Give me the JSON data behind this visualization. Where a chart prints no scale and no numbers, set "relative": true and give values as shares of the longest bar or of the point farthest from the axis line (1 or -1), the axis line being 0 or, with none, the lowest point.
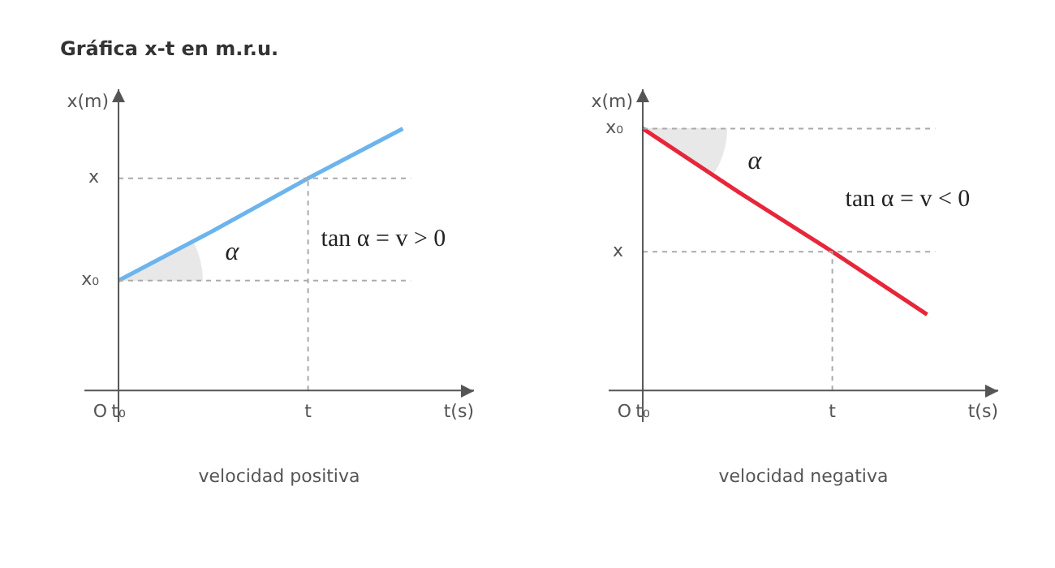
{
  "chart_data": [
    {
      "type": "line",
      "title": "Gráfica x-t en m.r.u.",
      "subtitle": "velocidad positiva",
      "xlabel": "t(s)",
      "ylabel": "x(m)",
      "relative": true,
      "categories": [
        "t₀",
        null,
        "t",
        null
      ],
      "series": [
        {
          "color": "#6cb4ee",
          "values": [
            0.42,
            0.61,
            0.81,
            1
          ]
        }
      ],
      "ref_lines": [
        {
          "axis": "y",
          "value": 0.42,
          "label": "x₀",
          "line_style": "dashed"
        },
        {
          "axis": "y",
          "value": 0.81,
          "label": "x",
          "line_style": "dashed"
        },
        {
          "axis": "x",
          "value": "t",
          "line_style": "dashed"
        }
      ],
      "annotations": [
        "O",
        "α",
        "tan α = v > 0"
      ]
    },
    {
      "type": "line",
      "subtitle": "velocidad negativa",
      "xlabel": "t(s)",
      "ylabel": "x(m)",
      "relative": true,
      "categories": [
        "t₀",
        null,
        "t",
        null
      ],
      "series": [
        {
          "color": "#e8263a",
          "values": [
            1,
            0.76,
            0.53,
            0.29
          ]
        }
      ],
      "ref_lines": [
        {
          "axis": "y",
          "value": 1,
          "label": "x₀",
          "line_style": "dashed"
        },
        {
          "axis": "y",
          "value": 0.53,
          "label": "x",
          "line_style": "dashed"
        },
        {
          "axis": "x",
          "value": "t",
          "line_style": "dashed"
        }
      ],
      "annotations": [
        "O",
        "α",
        "tan α = v < 0"
      ]
    }
  ]
}
